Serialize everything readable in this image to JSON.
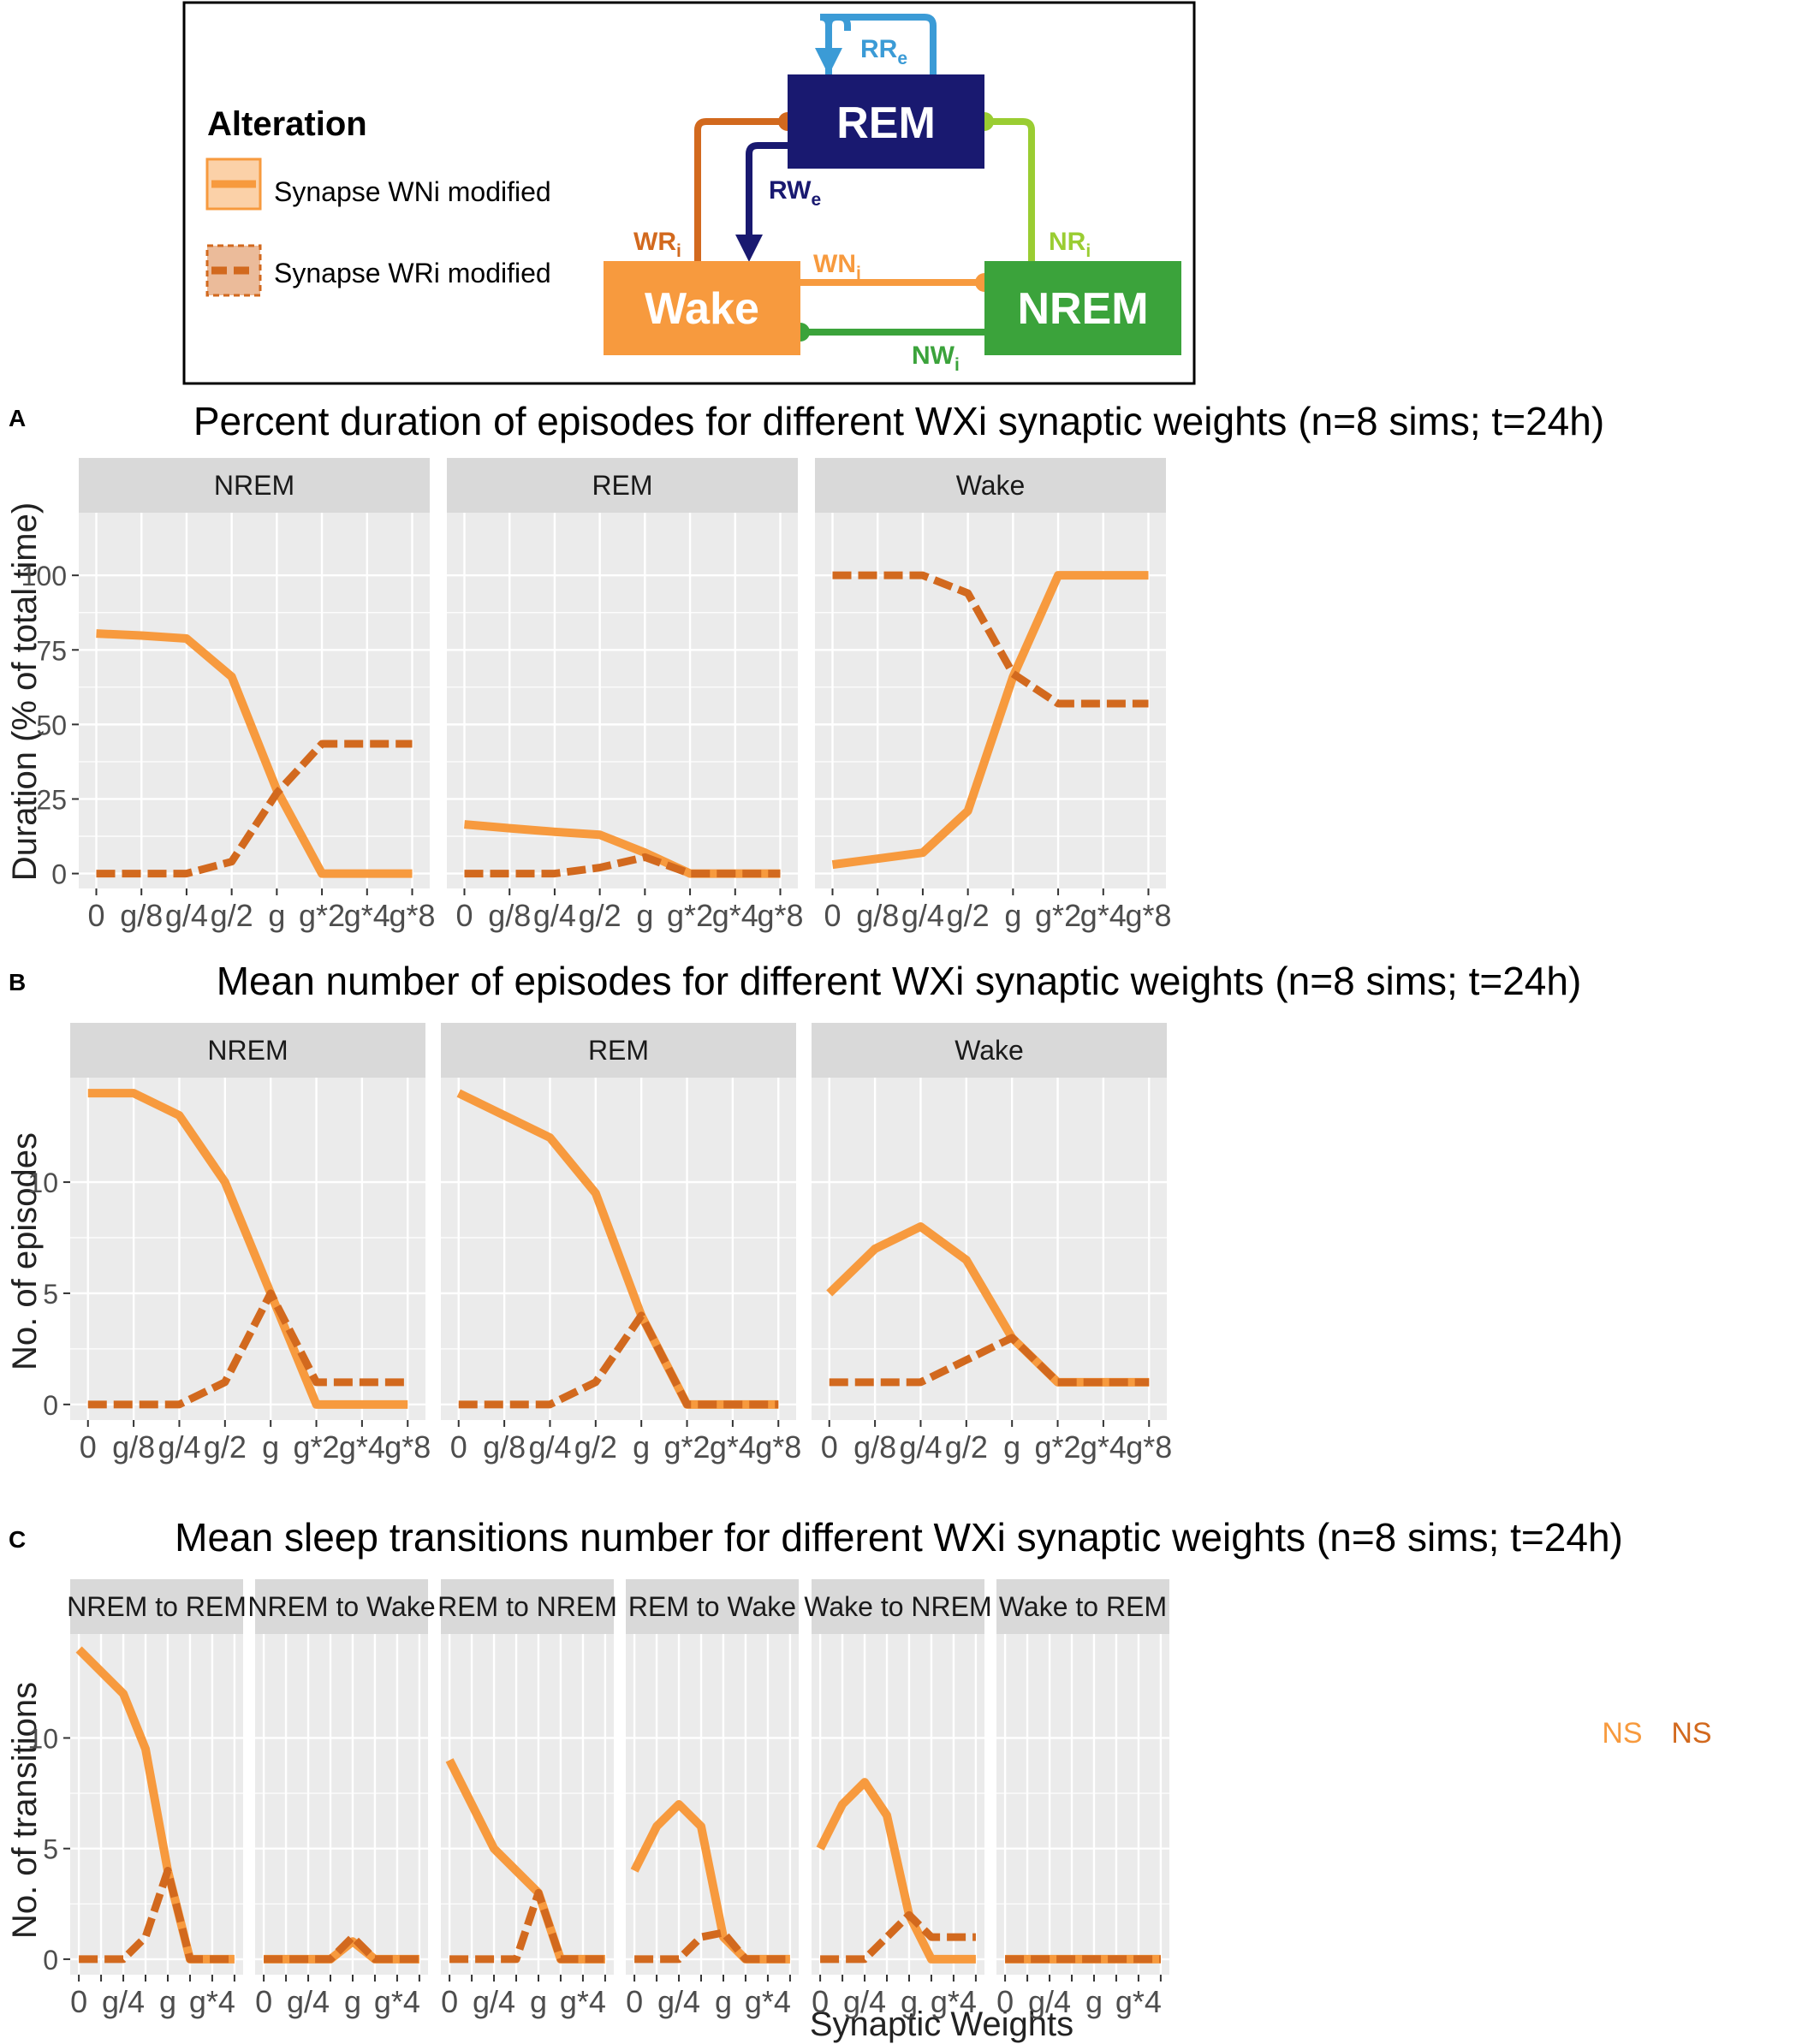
{
  "colors": {
    "wni": "#F79A3E",
    "wri": "#D2691E",
    "panel_bg": "#EBEBEB",
    "strip_bg": "#D9D9D9",
    "grid": "#FFFFFF",
    "rem": "#191970",
    "wake": "#F79A3E",
    "nrem": "#3BA33B",
    "rr": "#3B9BD6",
    "wr": "#D2691E",
    "nr": "#9ACD32",
    "rw": "#191970",
    "wn": "#F79A3E",
    "nw": "#3BA33B"
  },
  "legend": {
    "title": "Alteration",
    "item_wni": "Synapse WNi modified",
    "item_wri": "Synapse WRi modified"
  },
  "diagram": {
    "rem": "REM",
    "wake": "Wake",
    "nrem": "NREM",
    "rr": {
      "main": "RR",
      "sub": "e"
    },
    "rw": {
      "main": "RW",
      "sub": "e"
    },
    "wr": {
      "main": "WR",
      "sub": "i"
    },
    "nr": {
      "main": "NR",
      "sub": "i"
    },
    "wn": {
      "main": "WN",
      "sub": "i"
    },
    "nw": {
      "main": "NW",
      "sub": "i"
    }
  },
  "ns_label": "NS",
  "chart_data": [
    {
      "type": "line",
      "tag": "A",
      "title": "Percent duration of episodes for different WXi synaptic weights (n=8 sims; t=24h)",
      "xlabel": "",
      "ylabel": "Duration (% of total time)",
      "ylim": [
        -5,
        121
      ],
      "yticks": [
        0,
        25,
        50,
        75,
        100
      ],
      "categories": [
        "0",
        "g/8",
        "g/4",
        "g/2",
        "g",
        "g*2",
        "g*4",
        "g*8"
      ],
      "facets": [
        {
          "strip": "NREM",
          "series": [
            {
              "name": "Synapse WNi modified",
              "values": [
                80.5,
                79.8,
                78.8,
                66,
                28,
                0,
                0,
                0
              ]
            },
            {
              "name": "Synapse WRi modified",
              "values": [
                0,
                0,
                0,
                4,
                27,
                43.5,
                43.5,
                43.5
              ]
            }
          ]
        },
        {
          "strip": "REM",
          "series": [
            {
              "name": "Synapse WNi modified",
              "values": [
                16.5,
                15.2,
                14,
                13,
                7,
                0,
                0,
                0
              ]
            },
            {
              "name": "Synapse WRi modified",
              "values": [
                0,
                0,
                0,
                2,
                5.5,
                0,
                0,
                0
              ]
            }
          ]
        },
        {
          "strip": "Wake",
          "series": [
            {
              "name": "Synapse WNi modified",
              "values": [
                3,
                5,
                7,
                21,
                66,
                100,
                100,
                100
              ]
            },
            {
              "name": "Synapse WRi modified",
              "values": [
                100,
                100,
                100,
                94,
                67,
                57,
                57,
                57
              ]
            }
          ]
        }
      ]
    },
    {
      "type": "line",
      "tag": "B",
      "title": "Mean number of episodes for different WXi synaptic weights (n=8 sims; t=24h)",
      "xlabel": "",
      "ylabel": "No. of episodes",
      "ylim": [
        -0.7,
        14.7
      ],
      "yticks": [
        0,
        5,
        10
      ],
      "categories": [
        "0",
        "g/8",
        "g/4",
        "g/2",
        "g",
        "g*2",
        "g*4",
        "g*8"
      ],
      "facets": [
        {
          "strip": "NREM",
          "series": [
            {
              "name": "Synapse WNi modified",
              "values": [
                14,
                14,
                13,
                10,
                5,
                0,
                0,
                0
              ]
            },
            {
              "name": "Synapse WRi modified",
              "values": [
                0,
                0,
                0,
                1,
                5,
                1,
                1,
                1
              ]
            }
          ]
        },
        {
          "strip": "REM",
          "series": [
            {
              "name": "Synapse WNi modified",
              "values": [
                14,
                13,
                12,
                9.5,
                4,
                0,
                0,
                0
              ]
            },
            {
              "name": "Synapse WRi modified",
              "values": [
                0,
                0,
                0,
                1,
                4,
                0,
                0,
                0
              ]
            }
          ]
        },
        {
          "strip": "Wake",
          "series": [
            {
              "name": "Synapse WNi modified",
              "values": [
                5,
                7,
                8,
                6.5,
                3,
                1,
                1,
                1
              ]
            },
            {
              "name": "Synapse WRi modified",
              "values": [
                1,
                1,
                1,
                2,
                3,
                1,
                1,
                1
              ]
            }
          ]
        }
      ]
    },
    {
      "type": "line",
      "tag": "C",
      "title": "Mean sleep transitions number for different WXi synaptic weights (n=8 sims; t=24h)",
      "xlabel": "Synaptic Weights",
      "ylabel": "No. of transitions",
      "ylim": [
        -0.7,
        14.7
      ],
      "yticks": [
        0,
        5,
        10
      ],
      "categories": [
        "0",
        "g/8",
        "g/4",
        "g/2",
        "g",
        "g*2",
        "g*4",
        "g*8"
      ],
      "tick_labels": [
        "0",
        "",
        "g/4",
        "",
        "g",
        "",
        "g*4",
        ""
      ],
      "facets": [
        {
          "strip": "NREM to REM",
          "series": [
            {
              "name": "Synapse WNi modified",
              "values": [
                14,
                13,
                12,
                9.5,
                4,
                0,
                0,
                0
              ]
            },
            {
              "name": "Synapse WRi modified",
              "values": [
                0,
                0,
                0,
                1,
                4,
                0,
                0,
                0
              ]
            }
          ]
        },
        {
          "strip": "NREM to Wake",
          "series": [
            {
              "name": "Synapse WNi modified",
              "values": [
                0,
                0,
                0,
                0,
                0.8,
                0,
                0,
                0
              ]
            },
            {
              "name": "Synapse WRi modified",
              "values": [
                0,
                0,
                0,
                0,
                1,
                0,
                0,
                0
              ]
            }
          ]
        },
        {
          "strip": "REM to NREM",
          "series": [
            {
              "name": "Synapse WNi modified",
              "values": [
                9,
                7,
                5,
                4,
                3,
                0,
                0,
                0
              ]
            },
            {
              "name": "Synapse WRi modified",
              "values": [
                0,
                0,
                0,
                0,
                3,
                0,
                0,
                0
              ]
            }
          ]
        },
        {
          "strip": "REM to Wake",
          "series": [
            {
              "name": "Synapse WNi modified",
              "values": [
                4,
                6,
                7,
                6,
                1,
                0,
                0,
                0
              ]
            },
            {
              "name": "Synapse WRi modified",
              "values": [
                0,
                0,
                0,
                1,
                1.2,
                0,
                0,
                0
              ]
            }
          ]
        },
        {
          "strip": "Wake to NREM",
          "series": [
            {
              "name": "Synapse WNi modified",
              "values": [
                5,
                7,
                8,
                6.5,
                2,
                0,
                0,
                0
              ]
            },
            {
              "name": "Synapse WRi modified",
              "values": [
                0,
                0,
                0,
                1,
                2,
                1,
                1,
                1
              ]
            }
          ]
        },
        {
          "strip": "Wake to REM",
          "series": [
            {
              "name": "Synapse WNi modified",
              "values": [
                0,
                0,
                0,
                0,
                0,
                0,
                0,
                0
              ]
            },
            {
              "name": "Synapse WRi modified",
              "values": [
                0,
                0,
                0,
                0,
                0,
                0,
                0,
                0
              ]
            }
          ]
        }
      ]
    }
  ]
}
